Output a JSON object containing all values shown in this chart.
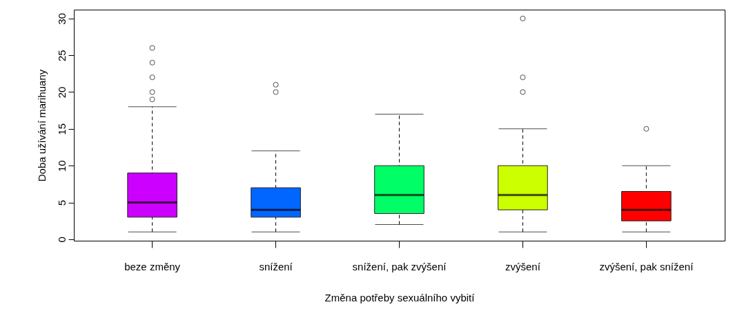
{
  "chart_data": {
    "type": "box",
    "xlabel": "Změna potřeby sexuálního vybití",
    "ylabel": "Doba užívání marihuany",
    "categories": [
      "beze změny",
      "snížení",
      "snížení, pak zvýšení",
      "zvýšení",
      "zvýšení, pak snížení"
    ],
    "colors": [
      "#cc00ff",
      "#0066ff",
      "#00ff66",
      "#ccff00",
      "#ff0000"
    ],
    "boxes": [
      {
        "low": 1,
        "q1": 3,
        "median": 5,
        "q3": 9,
        "high": 18,
        "outliers": [
          19,
          20,
          22,
          24,
          26
        ]
      },
      {
        "low": 1,
        "q1": 3,
        "median": 4,
        "q3": 7,
        "high": 12,
        "outliers": [
          20,
          21
        ]
      },
      {
        "low": 2,
        "q1": 3.5,
        "median": 6,
        "q3": 10,
        "high": 17
      },
      {
        "low": 1,
        "q1": 4,
        "median": 6,
        "q3": 10,
        "high": 15,
        "outliers": [
          20,
          22,
          30
        ]
      },
      {
        "low": 1,
        "q1": 2.5,
        "median": 4,
        "q3": 6.5,
        "high": 10,
        "outliers": [
          15
        ]
      }
    ],
    "ylim": [
      -0.2,
      31.2
    ],
    "yticks": [
      0,
      5,
      10,
      15,
      20,
      25,
      30
    ]
  }
}
